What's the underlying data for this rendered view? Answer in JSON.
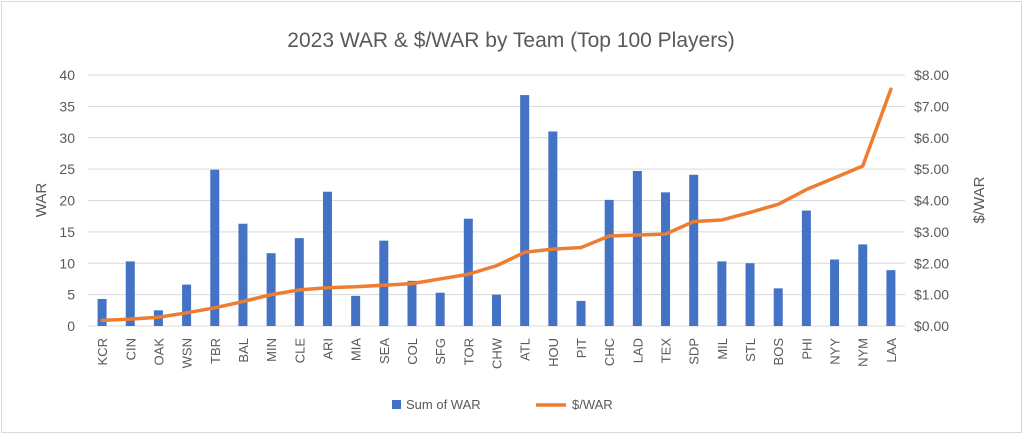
{
  "chart_data": {
    "type": "bar+line",
    "title": "2023 WAR & $/WAR by Team (Top 100 Players)",
    "ylabel": "WAR",
    "y2label": "$/WAR",
    "ylim": [
      0,
      40
    ],
    "y2lim": [
      0,
      8
    ],
    "yticks": [
      "0",
      "5",
      "10",
      "15",
      "20",
      "25",
      "30",
      "35",
      "40"
    ],
    "y2ticks": [
      "$0.00",
      "$1.00",
      "$2.00",
      "$3.00",
      "$4.00",
      "$5.00",
      "$6.00",
      "$7.00",
      "$8.00"
    ],
    "categories": [
      "KCR",
      "CIN",
      "OAK",
      "WSN",
      "TBR",
      "BAL",
      "MIN",
      "CLE",
      "ARI",
      "MIA",
      "SEA",
      "COL",
      "SFG",
      "TOR",
      "CHW",
      "ATL",
      "HOU",
      "PIT",
      "CHC",
      "LAD",
      "TEX",
      "SDP",
      "MIL",
      "STL",
      "BOS",
      "PHI",
      "NYY",
      "NYM",
      "LAA"
    ],
    "series": [
      {
        "name": "Sum of WAR",
        "type": "bar",
        "color": "#4472c4",
        "values": [
          4.3,
          10.3,
          2.5,
          6.6,
          24.9,
          16.3,
          11.6,
          14.0,
          21.4,
          4.8,
          13.6,
          7.2,
          5.3,
          17.1,
          5.0,
          36.8,
          31.0,
          4.0,
          20.1,
          24.7,
          21.3,
          24.1,
          10.3,
          10.0,
          6.0,
          18.4,
          10.6,
          13.0,
          8.9
        ]
      },
      {
        "name": "$/WAR",
        "type": "line",
        "axis": "right",
        "color": "#ed7d31",
        "values": [
          0.18,
          0.22,
          0.28,
          0.42,
          0.58,
          0.78,
          1.0,
          1.15,
          1.22,
          1.25,
          1.3,
          1.35,
          1.5,
          1.65,
          1.92,
          2.35,
          2.45,
          2.5,
          2.87,
          2.9,
          2.93,
          3.33,
          3.38,
          3.62,
          3.88,
          4.35,
          4.72,
          5.1,
          7.55
        ]
      }
    ],
    "grid": true,
    "legend": "bottom"
  }
}
